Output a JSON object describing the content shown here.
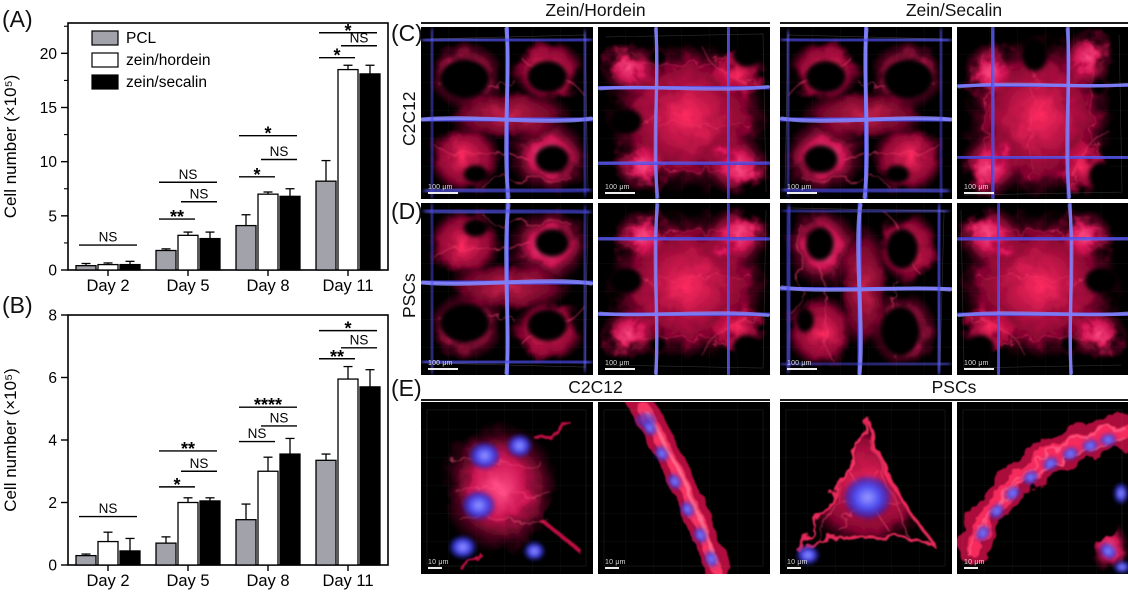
{
  "figure": {
    "panel_labels": {
      "a": "(A)",
      "b": "(B)",
      "c": "(C)",
      "d": "(D)",
      "e": "(E)"
    },
    "row_labels": {
      "c": "C2C12",
      "d": "PSCs"
    },
    "top_headers": [
      "Zein/Hordein",
      "Zein/Secalin"
    ],
    "e_headers": [
      "C2C12",
      "PSCs"
    ],
    "scalebars": {
      "cd": "100 μm",
      "e": "10 μm"
    },
    "stain_colors": {
      "cytoskeleton_red": "#e3175c",
      "nuclei_blue": "#4a4af2"
    }
  },
  "chart_data": [
    {
      "panel": "A",
      "type": "bar",
      "title": "",
      "xlabel": "",
      "ylabel": "Cell number (×10⁵)",
      "categories": [
        "Day 2",
        "Day 5",
        "Day 8",
        "Day 11"
      ],
      "series": [
        {
          "name": "PCL",
          "color": "#a2a2aa",
          "values": [
            0.4,
            1.8,
            4.1,
            8.2
          ],
          "errors": [
            0.2,
            0.15,
            1.0,
            1.9
          ]
        },
        {
          "name": "zein/hordein",
          "color": "#ffffff",
          "values": [
            0.5,
            3.2,
            7.0,
            18.5
          ],
          "errors": [
            0.15,
            0.3,
            0.2,
            0.4
          ]
        },
        {
          "name": "zein/secalin",
          "color": "#000000",
          "values": [
            0.5,
            2.9,
            6.8,
            18.1
          ],
          "errors": [
            0.3,
            0.6,
            0.7,
            0.8
          ]
        }
      ],
      "ylim": [
        0,
        22.8
      ],
      "yticks": [
        0,
        5,
        10,
        15,
        20
      ],
      "yminor_step": 2.5,
      "legend": true,
      "legend_position": "top-left",
      "grid": false,
      "significance": [
        {
          "category": "Day 2",
          "pair": [
            0,
            2
          ],
          "y": 2.3,
          "label": "NS"
        },
        {
          "category": "Day 5",
          "pair": [
            0,
            1
          ],
          "y": 4.7,
          "label": "**"
        },
        {
          "category": "Day 5",
          "pair": [
            1,
            2
          ],
          "y": 6.3,
          "label": "NS"
        },
        {
          "category": "Day 5",
          "pair": [
            0,
            2
          ],
          "y": 8.1,
          "label": "NS"
        },
        {
          "category": "Day 8",
          "pair": [
            0,
            1
          ],
          "y": 8.6,
          "label": "*"
        },
        {
          "category": "Day 8",
          "pair": [
            1,
            2
          ],
          "y": 10.2,
          "label": "NS"
        },
        {
          "category": "Day 8",
          "pair": [
            0,
            2
          ],
          "y": 12.4,
          "label": "*"
        },
        {
          "category": "Day 11",
          "pair": [
            0,
            1
          ],
          "y": 19.6,
          "label": "*"
        },
        {
          "category": "Day 11",
          "pair": [
            1,
            2
          ],
          "y": 20.7,
          "label": "NS"
        },
        {
          "category": "Day 11",
          "pair": [
            0,
            2
          ],
          "y": 21.9,
          "label": "*"
        }
      ]
    },
    {
      "panel": "B",
      "type": "bar",
      "title": "",
      "xlabel": "",
      "ylabel": "Cell number (×10⁵)",
      "categories": [
        "Day 2",
        "Day 5",
        "Day 8",
        "Day 11"
      ],
      "series": [
        {
          "name": "PCL",
          "color": "#a2a2aa",
          "values": [
            0.3,
            0.7,
            1.45,
            3.35
          ],
          "errors": [
            0.05,
            0.2,
            0.5,
            0.2
          ]
        },
        {
          "name": "zein/hordein",
          "color": "#ffffff",
          "values": [
            0.75,
            2.0,
            3.0,
            5.95
          ],
          "errors": [
            0.3,
            0.15,
            0.45,
            0.4
          ]
        },
        {
          "name": "zein/secalin",
          "color": "#000000",
          "values": [
            0.45,
            2.05,
            3.55,
            5.7
          ],
          "errors": [
            0.4,
            0.1,
            0.5,
            0.55
          ]
        }
      ],
      "ylim": [
        0,
        8
      ],
      "yticks": [
        0,
        2,
        4,
        6,
        8
      ],
      "legend": false,
      "grid": false,
      "significance": [
        {
          "category": "Day 2",
          "pair": [
            0,
            2
          ],
          "y": 1.55,
          "label": "NS"
        },
        {
          "category": "Day 5",
          "pair": [
            0,
            1
          ],
          "y": 2.5,
          "label": "*"
        },
        {
          "category": "Day 5",
          "pair": [
            1,
            2
          ],
          "y": 3.0,
          "label": "NS"
        },
        {
          "category": "Day 5",
          "pair": [
            0,
            2
          ],
          "y": 3.65,
          "label": "**"
        },
        {
          "category": "Day 8",
          "pair": [
            0,
            1
          ],
          "y": 3.95,
          "label": "NS"
        },
        {
          "category": "Day 8",
          "pair": [
            1,
            2
          ],
          "y": 4.45,
          "label": "NS"
        },
        {
          "category": "Day 8",
          "pair": [
            0,
            2
          ],
          "y": 5.05,
          "label": "****"
        },
        {
          "category": "Day 11",
          "pair": [
            0,
            1
          ],
          "y": 6.6,
          "label": "**"
        },
        {
          "category": "Day 11",
          "pair": [
            1,
            2
          ],
          "y": 6.95,
          "label": "NS"
        },
        {
          "category": "Day 11",
          "pair": [
            0,
            2
          ],
          "y": 7.5,
          "label": "*"
        }
      ]
    }
  ]
}
